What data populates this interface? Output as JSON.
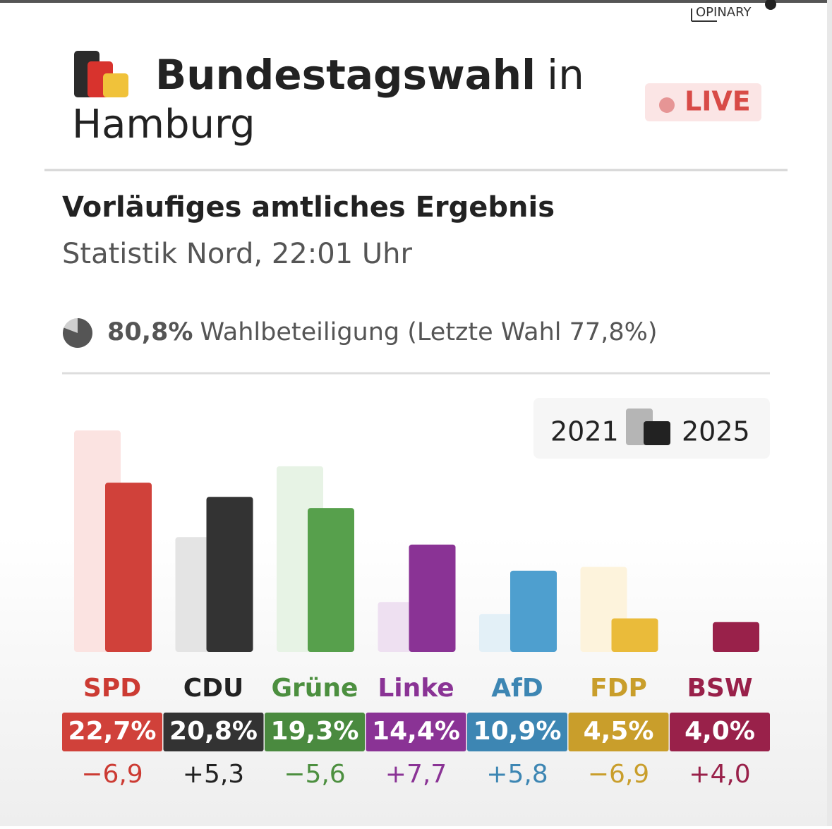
{
  "header": {
    "brand": "OPINARY",
    "title": "Bundestagswahl",
    "title_rest": "in",
    "title_place": "Hamburg",
    "badge": "LIVE"
  },
  "chart_data": {
    "type": "bar",
    "title": "Vorläufiges amtliches Ergebnis",
    "subtitle": "Statistik Nord, 22:01 Uhr",
    "turnout": {
      "value": 80.8,
      "label": "80,8%",
      "text": "Wahlbeteiligung (Letzte Wahl 77,8%)"
    },
    "categories": [
      "SPD",
      "CDU",
      "Grüne",
      "Linke",
      "AfD",
      "FDP",
      "BSW"
    ],
    "series": [
      {
        "name": "2021",
        "color": "#b5b5b5",
        "values": [
          29.7,
          15.4,
          24.9,
          6.7,
          5.1,
          11.4,
          null
        ],
        "colors": [
          "#fbe3e1",
          "#e4e4e4",
          "#e7f3e5",
          "#eee0f1",
          "#e3f0f7",
          "#fdf3dc",
          "#f6e0e5"
        ]
      },
      {
        "name": "2025",
        "color": "#222222",
        "values": [
          22.7,
          20.8,
          19.3,
          14.4,
          10.9,
          4.5,
          4.0
        ],
        "value_labels": [
          "22,7%",
          "20,8%",
          "19,3%",
          "14,4%",
          "10,9%",
          "4,5%",
          "4,0%"
        ],
        "colors": [
          "#d0413a",
          "#333333",
          "#57a04c",
          "#8a3395",
          "#4e9fcf",
          "#eabb3a",
          "#99214a"
        ],
        "label_colors": [
          "#cc3b33",
          "#222222",
          "#4c8f3f",
          "#8a3395",
          "#3d86b3",
          "#c99e2b",
          "#99214a"
        ]
      }
    ],
    "changes": [
      -6.9,
      5.3,
      -5.6,
      7.7,
      5.8,
      -6.9,
      4.0
    ],
    "change_labels": [
      "−6,9",
      "+5,3",
      "−5,6",
      "+7,7",
      "+5,8",
      "−6,9",
      "+4,0"
    ],
    "ylim": [
      0,
      30
    ]
  }
}
